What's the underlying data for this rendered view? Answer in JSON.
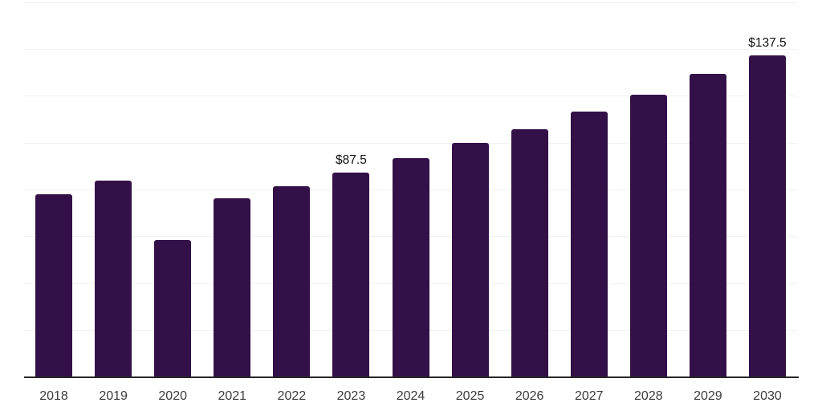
{
  "chart_data": {
    "type": "bar",
    "title": "",
    "categories": [
      "2018",
      "2019",
      "2020",
      "2021",
      "2022",
      "2023",
      "2024",
      "2025",
      "2026",
      "2027",
      "2028",
      "2029",
      "2030"
    ],
    "values": [
      78,
      84,
      58.5,
      76.5,
      81.5,
      87.5,
      93.5,
      100,
      106,
      113.5,
      120.5,
      129.5,
      137.5
    ],
    "data_labels": {
      "2023": "$87.5",
      "2030": "$137.5"
    },
    "xlabel": "",
    "ylabel": "",
    "ylim": [
      0,
      160
    ],
    "gridline_step": 20,
    "grid": "horizontal-only",
    "legend": "none",
    "y_axis_tick_labels": "none",
    "bar_color": "#331148",
    "axis_line_color": "#262626",
    "gridline_color": "#f1f1f1",
    "tick_label_color": "#3b3b3b",
    "data_label_color": "#111111",
    "background_color": "#ffffff"
  }
}
